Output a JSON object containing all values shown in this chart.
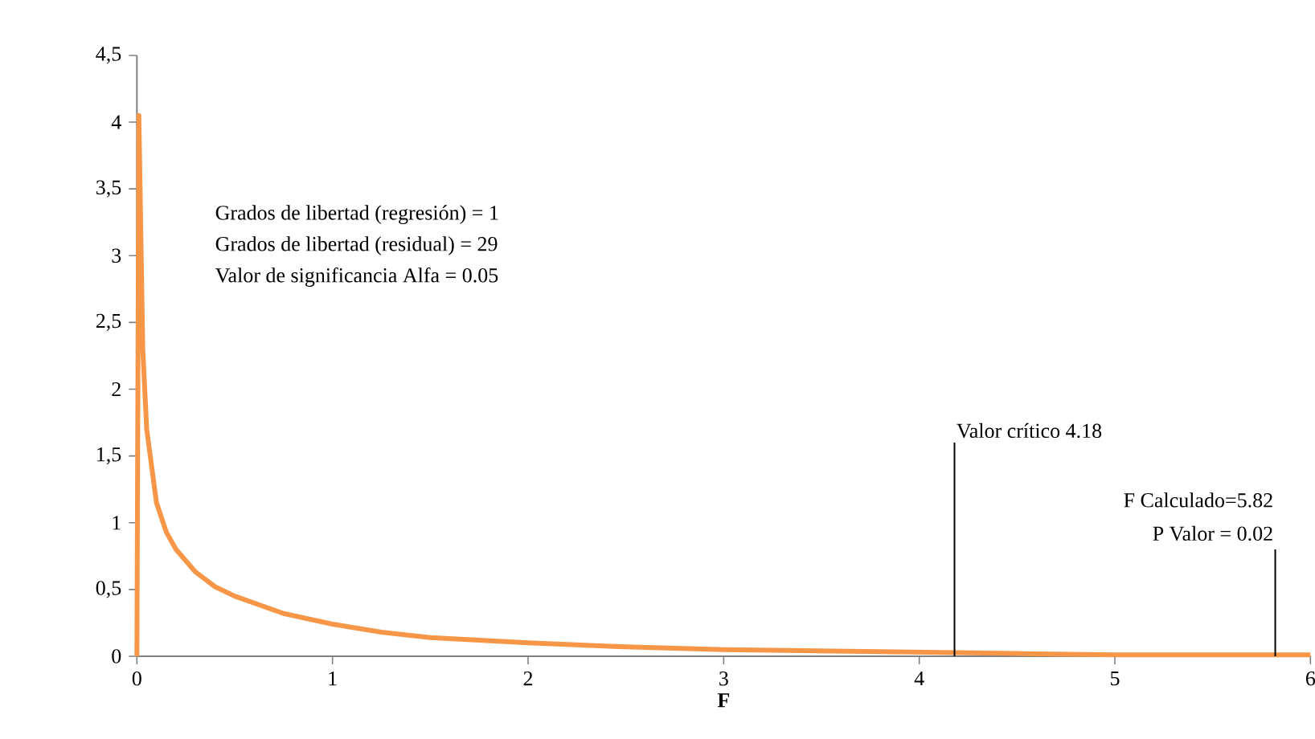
{
  "chart_data": {
    "type": "line",
    "xlabel": "F",
    "x": [
      0,
      0.01,
      0.03,
      0.05,
      0.1,
      0.15,
      0.2,
      0.3,
      0.4,
      0.5,
      0.75,
      1,
      1.25,
      1.5,
      2,
      2.5,
      3,
      3.5,
      4,
      4.5,
      5,
      5.5,
      6
    ],
    "series": [
      {
        "color": "#f79646",
        "values": [
          0,
          4.05,
          2.3,
          1.7,
          1.15,
          0.93,
          0.8,
          0.63,
          0.52,
          0.45,
          0.32,
          0.24,
          0.18,
          0.14,
          0.1,
          0.07,
          0.05,
          0.04,
          0.03,
          0.02,
          0.01,
          0.01,
          0.01
        ]
      }
    ],
    "xlim": [
      0,
      6
    ],
    "xticks": [
      0,
      1,
      2,
      3,
      4,
      5,
      6
    ],
    "ylim": [
      0,
      4.5
    ],
    "yticks": [
      0,
      {
        "value": 0.5,
        "label": "0,5"
      },
      1,
      {
        "value": 1.5,
        "label": "1,5"
      },
      2,
      {
        "value": 2.5,
        "label": "2,5"
      },
      3,
      {
        "value": 3.5,
        "label": "3,5"
      },
      4,
      {
        "value": 4.5,
        "label": "4,5"
      }
    ],
    "ref_lines": [
      {
        "axis": "x",
        "value": 4.18,
        "label": "Valor crítico 4.18",
        "color": "#000000"
      },
      {
        "axis": "x",
        "value": 5.82,
        "label": "F Calculado=5.82",
        "color": "#000000"
      }
    ],
    "annotations": [
      "Grados de libertad (regresión) = 1",
      "Grados de libertad (residual) = 29",
      "Valor de significancia Alfa = 0.05",
      {
        "text": "P Valor = 0.02",
        "x": 5.82,
        "y": 0.8
      }
    ],
    "marker": "none",
    "line_style": "solid"
  }
}
